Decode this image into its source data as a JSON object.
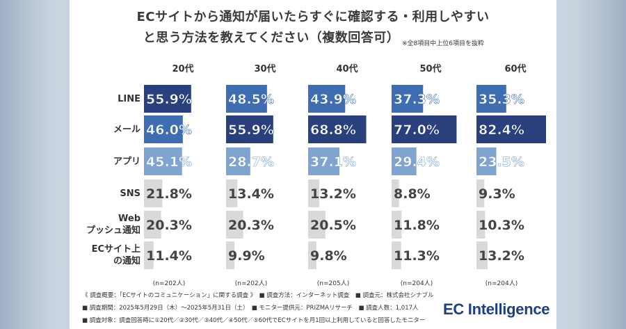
{
  "title_line1": "ECサイトから通知が届いたらすぐに確認する・利用しやすい",
  "title_line2": "と思う方法を教えてください（複数回答可）",
  "note": "※全8項目中上位6項目を抜粋",
  "brand": "EC Intelligence",
  "colors": {
    "dark": "#29407c",
    "mid": "#3f6db2",
    "light": "#7ea4cf",
    "gray": "#d9d9d9"
  },
  "chart_data": {
    "type": "bar",
    "orientation": "horizontal-small-multiples",
    "panels": [
      "20代",
      "30代",
      "40代",
      "50代",
      "60代"
    ],
    "categories": [
      "LINE",
      "メール",
      "アプリ",
      "SNS",
      "Web\nプッシュ通知",
      "ECサイト上\nの通知"
    ],
    "category_lines": [
      [
        "LINE"
      ],
      [
        "メール"
      ],
      [
        "アプリ"
      ],
      [
        "SNS"
      ],
      [
        "Web",
        "プッシュ通知"
      ],
      [
        "ECサイト上",
        "の通知"
      ]
    ],
    "series": [
      {
        "name": "20代",
        "values": [
          55.9,
          46.0,
          45.1,
          21.8,
          20.3,
          11.4
        ]
      },
      {
        "name": "30代",
        "values": [
          48.5,
          55.9,
          28.7,
          13.4,
          20.3,
          9.9
        ]
      },
      {
        "name": "40代",
        "values": [
          43.9,
          68.8,
          37.1,
          13.2,
          20.5,
          9.8
        ]
      },
      {
        "name": "50代",
        "values": [
          37.3,
          77.0,
          29.4,
          8.8,
          11.8,
          11.3
        ]
      },
      {
        "name": "60代",
        "values": [
          35.3,
          82.4,
          23.5,
          9.3,
          10.3,
          13.2
        ]
      }
    ],
    "value_labels": [
      [
        "55.9%",
        "46.0%",
        "45.1%",
        "21.8%",
        "20.3%",
        "11.4%"
      ],
      [
        "48.5%",
        "55.9%",
        "28.7%",
        "13.4%",
        "20.3%",
        "9.9%"
      ],
      [
        "43.9%",
        "68.8%",
        "37.1%",
        "13.2%",
        "20.5%",
        "9.8%"
      ],
      [
        "37.3%",
        "77.0%",
        "29.4%",
        "8.8%",
        "11.8%",
        "11.3%"
      ],
      [
        "35.3%",
        "82.4%",
        "23.5%",
        "9.3%",
        "10.3%",
        "13.2%"
      ]
    ],
    "rank_colors": [
      "dark",
      "mid",
      "light"
    ],
    "sample_sizes": [
      "(n=202人)",
      "(n=202人)",
      "(n=205人)",
      "(n=204人)",
      "(n=204人)"
    ],
    "xlim": [
      0,
      100
    ]
  },
  "footer": {
    "line1": "《 調査概要：「ECサイトのコミュニケーション」に関する調査 》　■ 調査方法：インターネット調査　■ 調査元：株式会社シナブル",
    "line2": "■ 調査期間：2025年5月29日（木）〜2025年5月31日（土）　■ モニター提供元：PRIZMAリサーチ　■ 調査人数：1,017人",
    "line3": "■ 調査対象：調査回答時に①20代／②30代／③40代／④50代／⑤60代でECサイトを月1回以上利用していると回答したモニター"
  }
}
